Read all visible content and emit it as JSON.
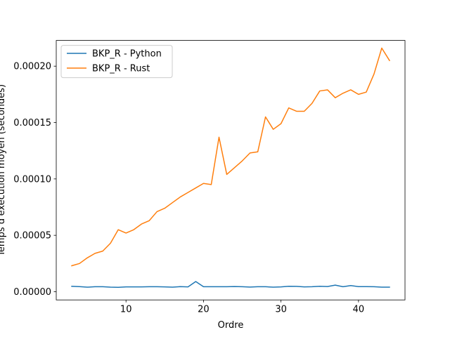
{
  "chart_data": {
    "type": "line",
    "xlabel": "Ordre",
    "ylabel": "Temps d'exécution moyen (secondes)",
    "xlim": [
      1,
      46
    ],
    "ylim": [
      -7.3e-06,
      0.0002228
    ],
    "xticks": [
      10,
      20,
      30,
      40
    ],
    "yticks": [
      0.0,
      5e-05,
      0.0001,
      0.00015,
      0.0002
    ],
    "ytick_labels": [
      "0.00000",
      "0.00005",
      "0.00010",
      "0.00015",
      "0.00020"
    ],
    "grid": false,
    "legend_position": "upper-left",
    "x": [
      3,
      4,
      5,
      6,
      7,
      8,
      9,
      10,
      11,
      12,
      13,
      14,
      15,
      16,
      17,
      18,
      19,
      20,
      21,
      22,
      23,
      24,
      25,
      26,
      27,
      28,
      29,
      30,
      31,
      32,
      33,
      34,
      35,
      36,
      37,
      38,
      39,
      40,
      41,
      42,
      43,
      44
    ],
    "series": [
      {
        "name": "BKP_R - Python",
        "color": "#1f77b4",
        "values": [
          4.8e-06,
          4.5e-06,
          4e-06,
          4.4e-06,
          4.4e-06,
          4e-06,
          3.9e-06,
          4.3e-06,
          4.3e-06,
          4.3e-06,
          4.4e-06,
          4.4e-06,
          4.3e-06,
          4e-06,
          4.5e-06,
          4.3e-06,
          9e-06,
          4.4e-06,
          4.4e-06,
          4.4e-06,
          4.4e-06,
          4.6e-06,
          4.4e-06,
          4.1e-06,
          4.4e-06,
          4.4e-06,
          4e-06,
          4.3e-06,
          4.8e-06,
          4.7e-06,
          4.3e-06,
          4.4e-06,
          4.8e-06,
          4.6e-06,
          5.8e-06,
          4.4e-06,
          5.4e-06,
          4.5e-06,
          4.5e-06,
          4.4e-06,
          4e-06,
          4e-06
        ]
      },
      {
        "name": "BKP_R - Rust",
        "color": "#ff7f0e",
        "values": [
          2.3e-05,
          2.5e-05,
          3e-05,
          3.4e-05,
          3.6e-05,
          4.3e-05,
          5.5e-05,
          5.2e-05,
          5.5e-05,
          6e-05,
          6.3e-05,
          7.1e-05,
          7.4e-05,
          7.9e-05,
          8.4e-05,
          8.8e-05,
          9.2e-05,
          9.6e-05,
          9.5e-05,
          0.000137,
          0.000104,
          0.00011,
          0.000116,
          0.000123,
          0.000124,
          0.000155,
          0.000144,
          0.000149,
          0.000163,
          0.00016,
          0.00016,
          0.000167,
          0.000178,
          0.000179,
          0.000172,
          0.000176,
          0.000179,
          0.000175,
          0.000177,
          0.000193,
          0.000216,
          0.000205
        ]
      }
    ]
  }
}
